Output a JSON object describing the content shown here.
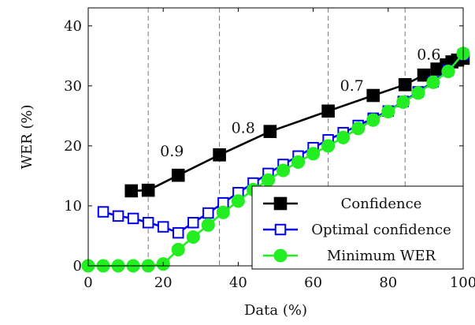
{
  "chart_data": {
    "type": "line",
    "title": "",
    "xlabel": "Data (%)",
    "ylabel": "WER (%)",
    "xlim": [
      0,
      100
    ],
    "ylim": [
      0,
      43
    ],
    "xticks": [
      0,
      20,
      40,
      60,
      80,
      100
    ],
    "yticks": [
      0,
      10,
      20,
      30,
      40
    ],
    "grid": false,
    "legend_position": "bottom-right",
    "series": [
      {
        "name": "Confidence",
        "color": "#000000",
        "marker": "filled-square",
        "points": [
          [
            11.5,
            12.5
          ],
          [
            16,
            12.6
          ],
          [
            24,
            15.1
          ],
          [
            35,
            18.5
          ],
          [
            48.5,
            22.4
          ],
          [
            64,
            25.8
          ],
          [
            76,
            28.4
          ],
          [
            84.5,
            30.2
          ],
          [
            89.5,
            31.8
          ],
          [
            93,
            32.8
          ],
          [
            95.5,
            33.5
          ],
          [
            97,
            34.0
          ],
          [
            98.5,
            34.3
          ],
          [
            100,
            34.6
          ]
        ]
      },
      {
        "name": "Optimal confidence",
        "color": "#0000ee",
        "marker": "open-square",
        "points": [
          [
            4,
            9.0
          ],
          [
            8,
            8.3
          ],
          [
            12,
            7.9
          ],
          [
            16,
            7.2
          ],
          [
            20,
            6.5
          ],
          [
            24,
            5.5
          ],
          [
            28,
            7.2
          ],
          [
            32,
            8.8
          ],
          [
            36,
            10.5
          ],
          [
            40,
            12.2
          ],
          [
            44,
            13.8
          ],
          [
            48,
            15.4
          ],
          [
            52,
            16.9
          ],
          [
            56,
            18.3
          ],
          [
            60,
            19.7
          ],
          [
            64,
            21.0
          ],
          [
            68,
            22.2
          ],
          [
            72,
            23.4
          ],
          [
            76,
            24.6
          ],
          [
            80,
            25.8
          ],
          [
            84,
            27.4
          ],
          [
            88,
            29.0
          ],
          [
            92,
            30.7
          ],
          [
            96,
            32.6
          ],
          [
            100,
            35.2
          ]
        ]
      },
      {
        "name": "Minimum WER",
        "color": "#22ee22",
        "marker": "filled-circle",
        "points": [
          [
            0,
            0
          ],
          [
            4,
            0
          ],
          [
            8,
            0
          ],
          [
            12,
            0
          ],
          [
            16,
            0
          ],
          [
            20,
            0.3
          ],
          [
            24,
            2.7
          ],
          [
            28,
            4.8
          ],
          [
            32,
            6.8
          ],
          [
            36,
            8.9
          ],
          [
            40,
            10.8
          ],
          [
            44,
            12.7
          ],
          [
            48,
            14.3
          ],
          [
            52,
            15.9
          ],
          [
            56,
            17.3
          ],
          [
            60,
            18.7
          ],
          [
            64,
            20.0
          ],
          [
            68,
            21.4
          ],
          [
            72,
            22.9
          ],
          [
            76,
            24.3
          ],
          [
            80,
            25.7
          ],
          [
            84,
            27.3
          ],
          [
            88,
            28.8
          ],
          [
            92,
            30.6
          ],
          [
            96,
            32.4
          ],
          [
            100,
            35.4
          ]
        ]
      }
    ],
    "reference_lines": [
      {
        "x": 16,
        "label": "0.9",
        "label_y": 19.2
      },
      {
        "x": 35,
        "label": "0.8",
        "label_y": 23.1
      },
      {
        "x": 64,
        "label": "0.7",
        "label_y": 30.1
      },
      {
        "x": 84.5,
        "label": "0.6",
        "label_y": 35.3
      }
    ]
  }
}
